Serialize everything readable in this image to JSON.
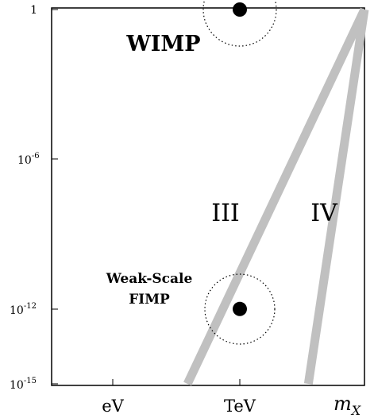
{
  "chart_data": {
    "type": "line",
    "y_scale": "log",
    "grid": false,
    "x_ticks": [
      "eV",
      "TeV"
    ],
    "y_ticks": [
      {
        "value": 1,
        "base": "1",
        "exp": ""
      },
      {
        "value": 1e-06,
        "base": "10",
        "exp": "-6"
      },
      {
        "value": 1e-12,
        "base": "10",
        "exp": "-12"
      },
      {
        "value": 1e-15,
        "base": "10",
        "exp": "-15"
      }
    ],
    "xlabel": {
      "main": "m",
      "sub": "X"
    },
    "series": [
      {
        "x": [
          -0.42,
          1.0
        ],
        "y_log10": [
          -15,
          0
        ],
        "color": "#c0c0c0"
      },
      {
        "x": [
          0.55,
          1.0
        ],
        "y_log10": [
          -15,
          0
        ],
        "color": "#c0c0c0"
      }
    ],
    "points": [
      {
        "label": "WIMP",
        "x": 0.0,
        "y_log10": 0
      },
      {
        "label": "Weak-Scale FIMP",
        "x": 0.0,
        "y_log10": -12
      }
    ],
    "regions": [
      {
        "label": "III",
        "x": 0.05,
        "y_log10": -8.1
      },
      {
        "label": "IV",
        "x": 0.38,
        "y_log10": -8.1
      }
    ],
    "fimp_lines": [
      "Weak-Scale",
      "FIMP"
    ]
  }
}
